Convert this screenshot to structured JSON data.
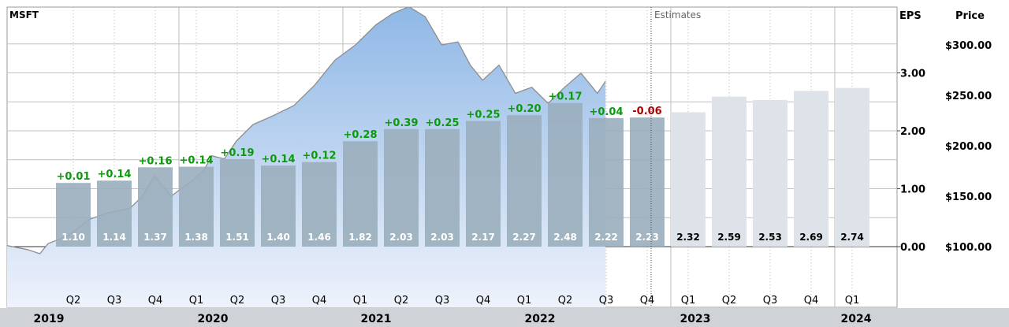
{
  "ticker": "MSFT",
  "estimates_label": "Estimates",
  "eps_axis_title": "EPS",
  "price_axis_title": "Price",
  "colors": {
    "actual_bar": "#9aaebd",
    "estimate_bar": "#dde3e9",
    "price_line": "#8e8e8e",
    "price_area_top": "#8fb8e6",
    "price_area_bottom": "#eef2fb",
    "surprise_positive": "#0a9a0a",
    "surprise_negative": "#b00000",
    "year_band": "#cfd3d8",
    "grid": "#c0c0c0"
  },
  "chart_data": {
    "type": "bar",
    "title": "MSFT",
    "quarters": [
      "Q2",
      "Q3",
      "Q4",
      "Q1",
      "Q2",
      "Q3",
      "Q4",
      "Q1",
      "Q2",
      "Q3",
      "Q4",
      "Q1",
      "Q2",
      "Q3",
      "Q4",
      "Q1",
      "Q2",
      "Q3",
      "Q4",
      "Q1"
    ],
    "years": [
      "2019",
      "2020",
      "2021",
      "2022",
      "2023",
      "2024"
    ],
    "eps": [
      1.1,
      1.14,
      1.37,
      1.38,
      1.51,
      1.4,
      1.46,
      1.82,
      2.03,
      2.03,
      2.17,
      2.27,
      2.48,
      2.22,
      2.23,
      2.32,
      2.59,
      2.53,
      2.69,
      2.74
    ],
    "eps_labels": [
      "1.10",
      "1.14",
      "1.37",
      "1.38",
      "1.51",
      "1.40",
      "1.46",
      "1.82",
      "2.03",
      "2.03",
      "2.17",
      "2.27",
      "2.48",
      "2.22",
      "2.23",
      "2.32",
      "2.59",
      "2.53",
      "2.69",
      "2.74"
    ],
    "is_estimate": [
      false,
      false,
      false,
      false,
      false,
      false,
      false,
      false,
      false,
      false,
      false,
      false,
      false,
      false,
      false,
      true,
      true,
      true,
      true,
      true
    ],
    "surprise": [
      0.01,
      0.14,
      0.16,
      0.14,
      0.19,
      0.14,
      0.12,
      0.28,
      0.39,
      0.25,
      0.25,
      0.2,
      0.17,
      0.04,
      -0.06
    ],
    "surprise_labels": [
      "+0.01",
      "+0.14",
      "+0.16",
      "+0.14",
      "+0.19",
      "+0.14",
      "+0.12",
      "+0.28",
      "+0.39",
      "+0.25",
      "+0.25",
      "+0.20",
      "+0.17",
      "+0.04",
      "-0.06"
    ],
    "eps_axis": {
      "ticks": [
        0,
        1,
        2,
        3
      ],
      "tick_labels": [
        "0.00",
        "1.00",
        "2.00",
        "3.00"
      ]
    },
    "price_axis": {
      "ticks": [
        100,
        150,
        200,
        250,
        300
      ],
      "tick_labels": [
        "$100.00",
        "$150.00",
        "$200.00",
        "$250.00",
        "$300.00"
      ]
    },
    "price_series": {
      "t": [
        0,
        0.5,
        0.8,
        1.0,
        1.5,
        2.0,
        2.5,
        3.0,
        3.3,
        3.6,
        4.0,
        4.5,
        4.8,
        5.0,
        5.3,
        5.6,
        6.0,
        6.5,
        7.0,
        7.5,
        8.0,
        8.5,
        9.0,
        9.4,
        9.8,
        10.2,
        10.6,
        11.0,
        11.3,
        11.6,
        12.0,
        12.4,
        12.8,
        13.2,
        13.6,
        14.0,
        14.4,
        14.6
      ],
      "price": [
        101,
        97,
        93,
        103,
        111,
        127,
        134,
        138,
        150,
        170,
        150,
        165,
        176,
        190,
        187,
        205,
        221,
        230,
        240,
        260,
        285,
        300,
        320,
        331,
        338,
        328,
        300,
        303,
        280,
        265,
        280,
        252,
        258,
        242,
        258,
        272,
        252,
        264
      ]
    },
    "legend": "none",
    "grid": true
  }
}
